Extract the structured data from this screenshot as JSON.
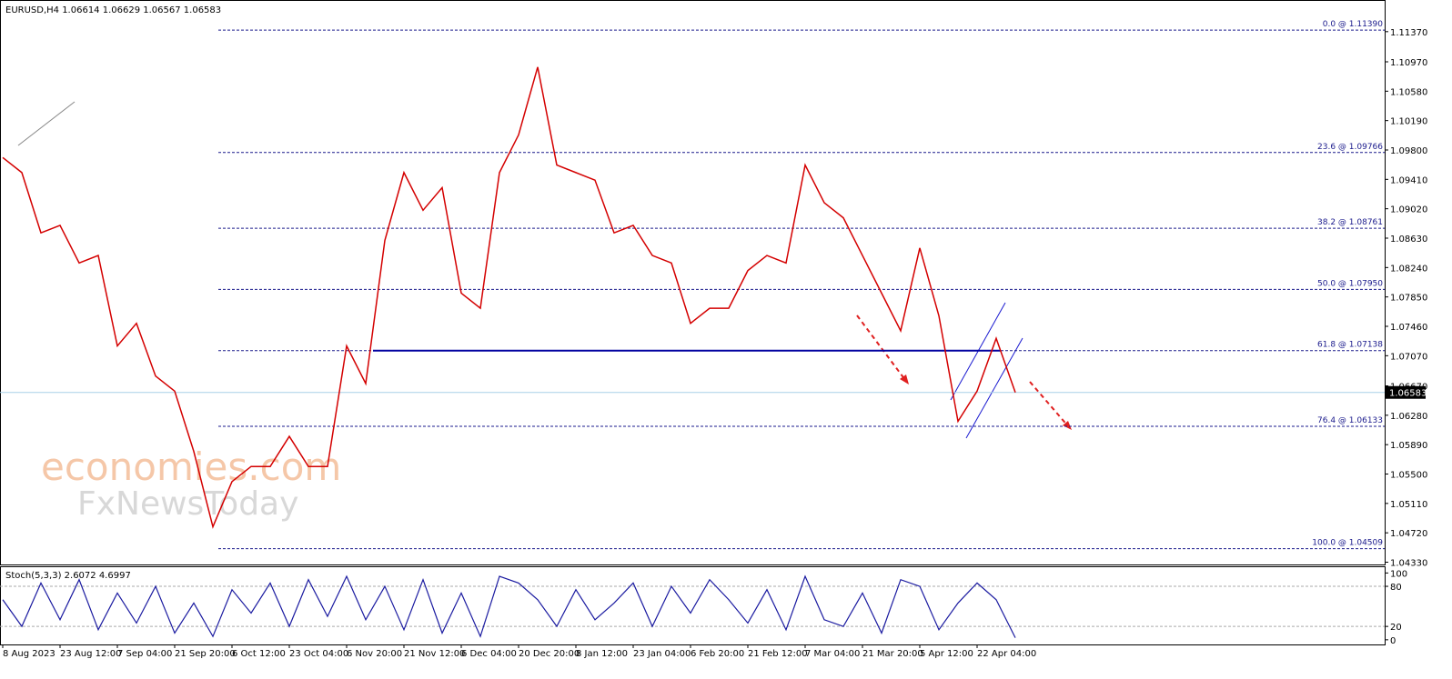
{
  "chart_data": {
    "type": "line",
    "title": "EURUSD,H4  1.06614 1.06629 1.06567 1.06583",
    "watermark": [
      "economies.com",
      "FxNewsToday"
    ],
    "categories": [
      "8 Aug 2023",
      null,
      null,
      "23 Aug 12:00",
      null,
      null,
      "7 Sep 04:00",
      null,
      null,
      "21 Sep 20:00",
      null,
      null,
      "6 Oct 12:00",
      null,
      null,
      "23 Oct 04:00",
      null,
      null,
      "6 Nov 20:00",
      null,
      null,
      "21 Nov 12:00",
      null,
      null,
      "6 Dec 04:00",
      null,
      null,
      "20 Dec 20:00",
      null,
      null,
      "8 Jan 12:00",
      null,
      null,
      "23 Jan 04:00",
      null,
      null,
      "6 Feb 20:00",
      null,
      null,
      "21 Feb 12:00",
      null,
      null,
      "7 Mar 04:00",
      null,
      null,
      "21 Mar 20:00",
      null,
      null,
      "5 Apr 12:00",
      null,
      null,
      "22 Apr 04:00",
      null,
      null
    ],
    "price": {
      "color": "#d40000",
      "values": [
        1.097,
        1.095,
        1.087,
        1.088,
        1.083,
        1.084,
        1.072,
        1.075,
        1.068,
        1.066,
        1.058,
        1.048,
        1.054,
        1.056,
        1.056,
        1.06,
        1.056,
        1.056,
        1.072,
        1.067,
        1.086,
        1.095,
        1.09,
        1.093,
        1.079,
        1.077,
        1.095,
        1.1,
        1.109,
        1.096,
        1.095,
        1.094,
        1.087,
        1.088,
        1.084,
        1.083,
        1.075,
        1.077,
        1.077,
        1.082,
        1.084,
        1.083,
        1.096,
        1.091,
        1.089,
        1.084,
        1.079,
        1.074,
        1.085,
        1.076,
        1.062,
        1.066,
        1.073,
        1.06583
      ]
    },
    "bid": 1.06583,
    "ylim": [
      1.043,
      1.1179
    ],
    "yticks": [
      {
        "value": 1.1137,
        "label": "1.11370"
      },
      {
        "value": 1.1097,
        "label": "1.10970"
      },
      {
        "value": 1.1058,
        "label": "1.10580"
      },
      {
        "value": 1.1019,
        "label": "1.10190"
      },
      {
        "value": 1.098,
        "label": "1.09800"
      },
      {
        "value": 1.0941,
        "label": "1.09410"
      },
      {
        "value": 1.0902,
        "label": "1.09020"
      },
      {
        "value": 1.0863,
        "label": "1.08630"
      },
      {
        "value": 1.0824,
        "label": "1.08240"
      },
      {
        "value": 1.0785,
        "label": "1.07850"
      },
      {
        "value": 1.0746,
        "label": "1.07460"
      },
      {
        "value": 1.0707,
        "label": "1.07070"
      },
      {
        "value": 1.0667,
        "label": "1.06670"
      },
      {
        "value": 1.0628,
        "label": "1.06280"
      },
      {
        "value": 1.0589,
        "label": "1.05890"
      },
      {
        "value": 1.055,
        "label": "1.05500"
      },
      {
        "value": 1.0511,
        "label": "1.05110"
      },
      {
        "value": 1.0472,
        "label": "1.04720"
      },
      {
        "value": 1.0433,
        "label": "1.04330"
      }
    ],
    "fib_levels": [
      {
        "value": 1.1139,
        "label": "0.0 @ 1.11390"
      },
      {
        "value": 1.09766,
        "label": "23.6 @ 1.09766"
      },
      {
        "value": 1.08761,
        "label": "38.2 @ 1.08761"
      },
      {
        "value": 1.0795,
        "label": "50.0 @ 1.07950"
      },
      {
        "value": 1.07138,
        "label": "61.8 @ 1.07138"
      },
      {
        "value": 1.06133,
        "label": "76.4 @ 1.06133"
      },
      {
        "value": 1.04509,
        "label": "100.0 @ 1.04509"
      }
    ],
    "stoch": {
      "title": "Stoch(5,3,3) 2.6072 4.6997",
      "color": "#1a1aa0",
      "values": [
        60,
        20,
        85,
        30,
        90,
        15,
        70,
        25,
        80,
        10,
        55,
        5,
        75,
        40,
        85,
        20,
        90,
        35,
        95,
        30,
        80,
        15,
        90,
        10,
        70,
        5,
        95,
        85,
        60,
        20,
        75,
        30,
        55,
        85,
        20,
        80,
        40,
        90,
        60,
        25,
        75,
        15,
        95,
        30,
        20,
        70,
        10,
        90,
        80,
        15,
        55,
        85,
        60,
        3
      ],
      "ylim": [
        -7,
        110
      ],
      "yticks": [
        100,
        80,
        20,
        0
      ],
      "levels": [
        80,
        20
      ]
    }
  }
}
